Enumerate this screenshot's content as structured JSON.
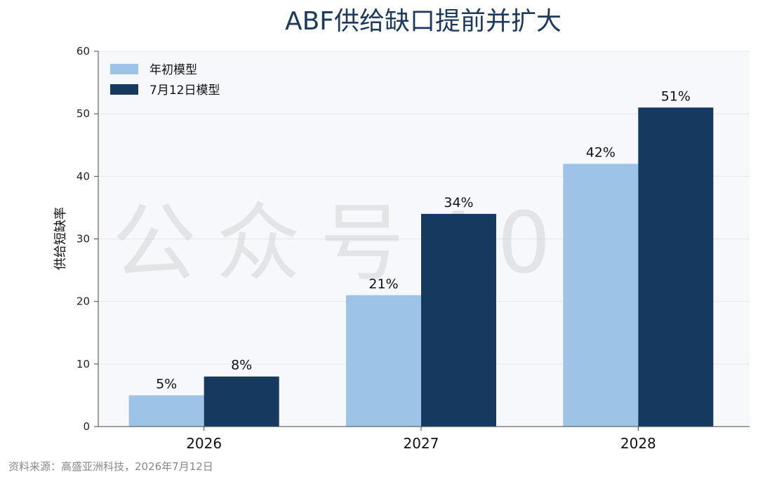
{
  "chart_data": {
    "type": "bar",
    "title": "ABF供给缺口提前并扩大",
    "ylabel": "供给短缺率",
    "xlabel": "",
    "categories": [
      "2026",
      "2027",
      "2028"
    ],
    "series": [
      {
        "name": "年初模型",
        "values": [
          5,
          21,
          42
        ],
        "color": "#9dc3e6",
        "labels": [
          "5%",
          "21%",
          "42%"
        ]
      },
      {
        "name": "7月12日模型",
        "values": [
          8,
          34,
          51
        ],
        "color": "#163a5f",
        "labels": [
          "8%",
          "34%",
          "51%"
        ]
      }
    ],
    "ylim": [
      0,
      60
    ],
    "yticks": [
      0,
      10,
      20,
      30,
      40,
      50,
      60
    ],
    "grid": true,
    "legend_position": "top-left",
    "plot_background": "#f7f8fc"
  },
  "source": "资料来源：高盛亚洲科技，2026年7月12日",
  "watermark": "公众号404"
}
